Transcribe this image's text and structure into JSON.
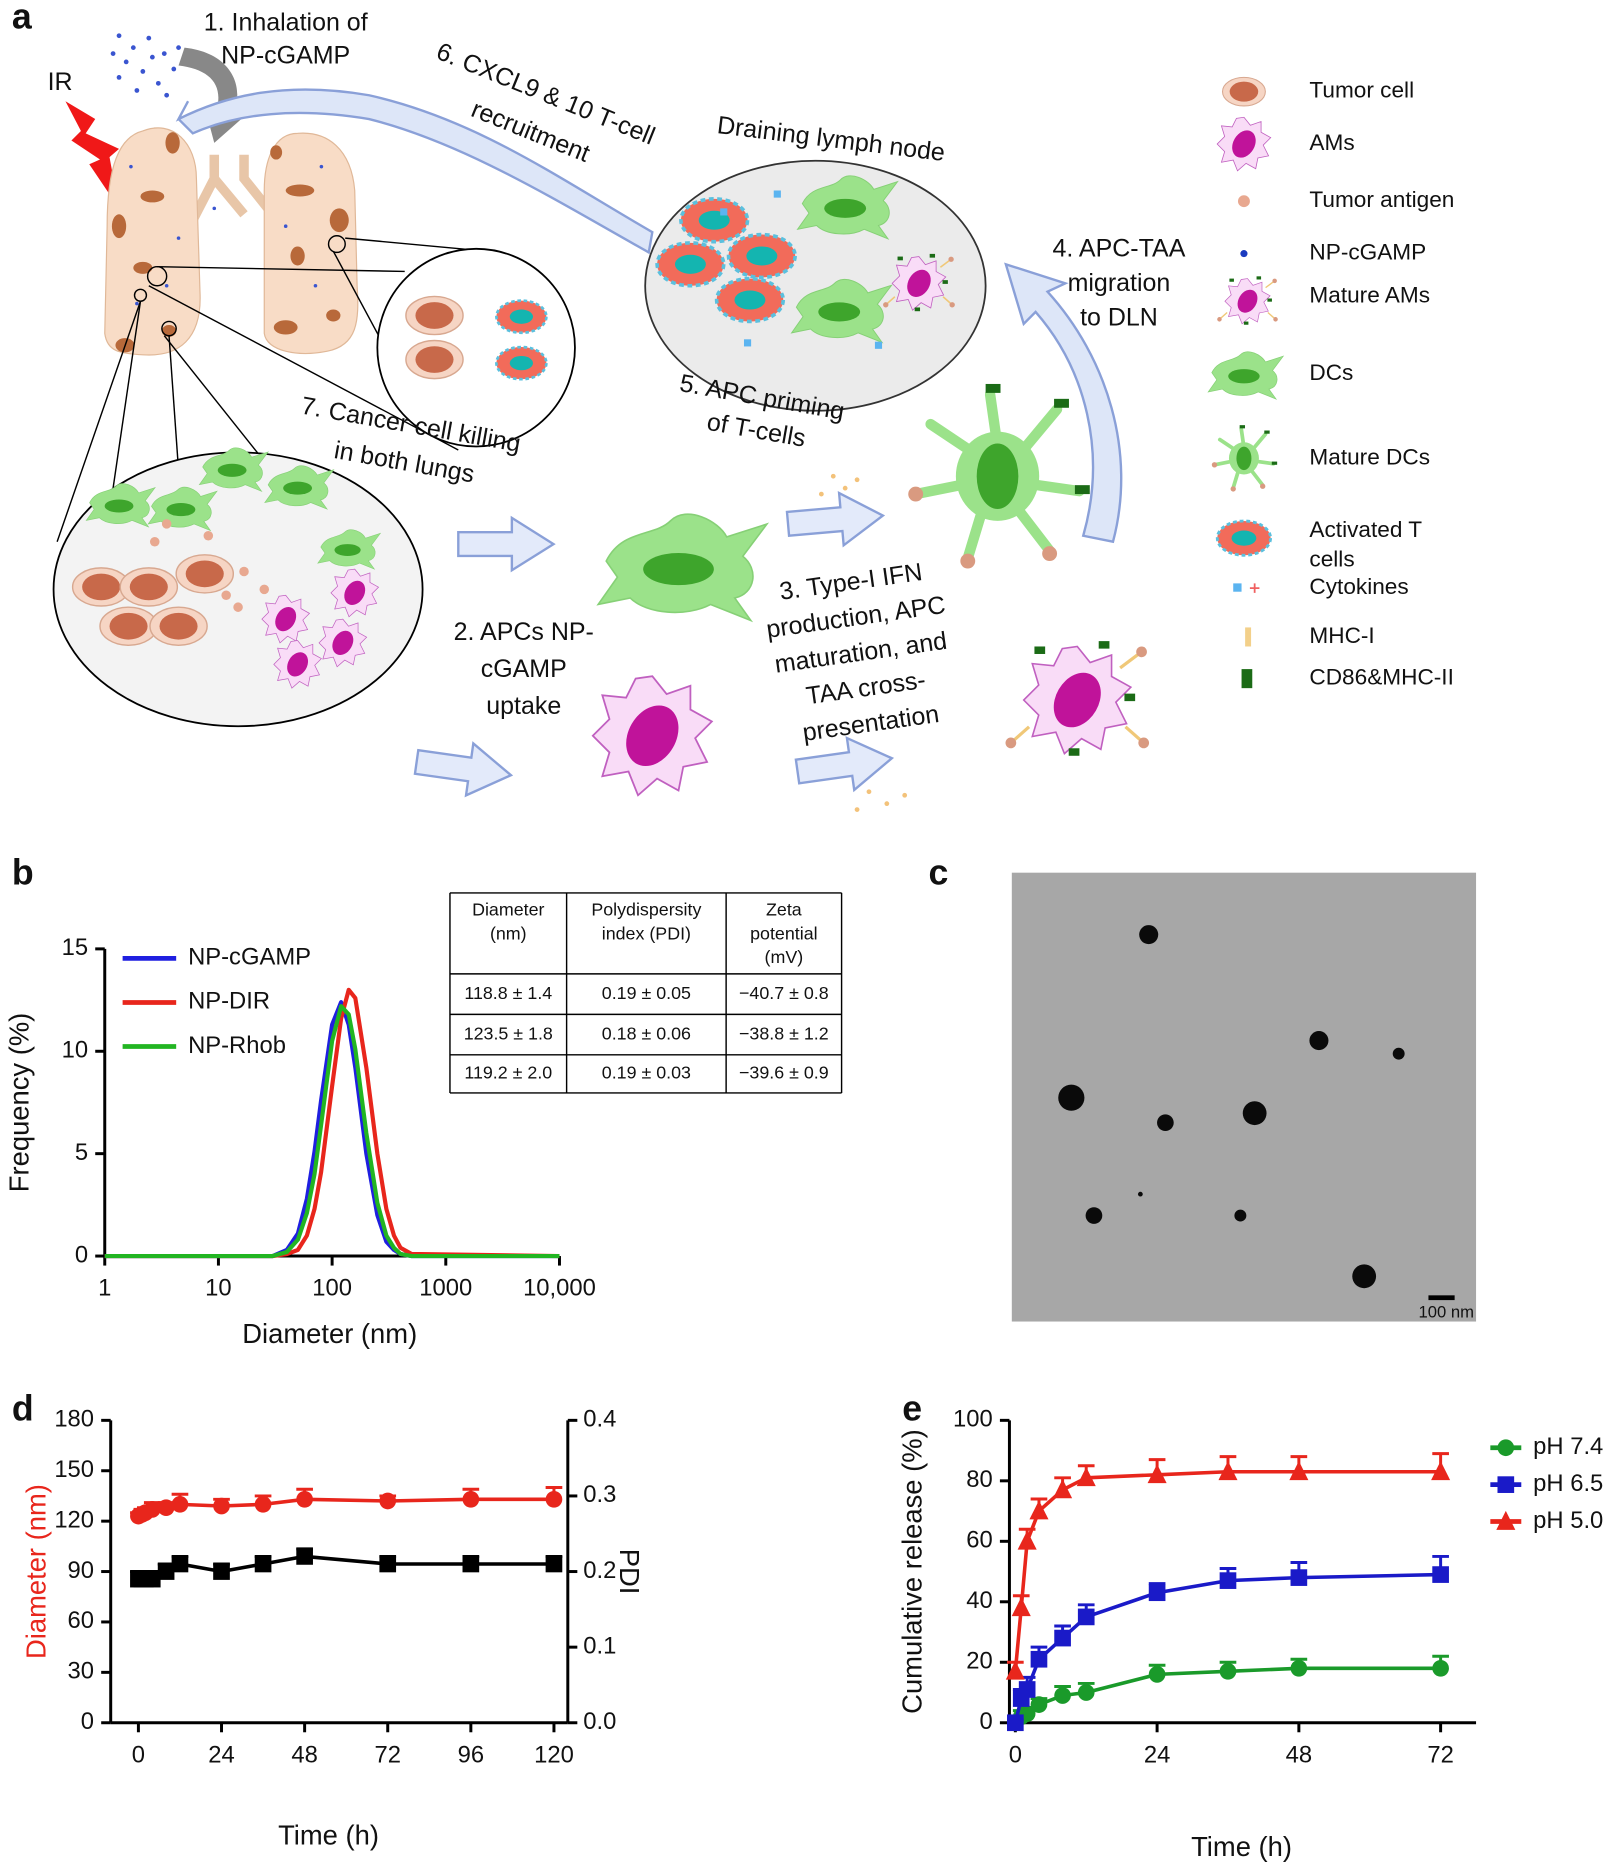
{
  "panel_labels": [
    "a",
    "b",
    "c",
    "d",
    "e"
  ],
  "panel_a": {
    "ir": "IR",
    "lymph_node": "Draining lymph node",
    "steps": [
      {
        "lines": [
          "1. Inhalation of",
          "NP-cGAMP"
        ]
      },
      {
        "lines": [
          "6. CXCL9 & 10 T-cell",
          "recruitment"
        ]
      },
      {
        "lines": [
          "5. APC priming",
          "of T-cells"
        ]
      },
      {
        "lines": [
          "4. APC-TAA",
          "migration",
          "to DLN"
        ]
      },
      {
        "lines": [
          "7. Cancer cell killing",
          "in both lungs"
        ]
      },
      {
        "lines": [
          "2. APCs NP-",
          "cGAMP",
          "uptake"
        ]
      },
      {
        "lines": [
          "3. Type-I IFN",
          "production, APC",
          "maturation, and",
          "TAA cross-",
          "presentation"
        ]
      }
    ],
    "legend": [
      [
        "Tumor cell"
      ],
      [
        "AMs"
      ],
      [
        "Tumor antigen"
      ],
      [
        "NP-cGAMP"
      ],
      [
        "Mature AMs"
      ],
      [
        "DCs"
      ],
      [
        "Mature DCs"
      ],
      [
        "Activated T",
        "cells"
      ],
      [
        "Cytokines"
      ],
      [
        "MHC-I"
      ],
      [
        "CD86&MHC-II"
      ]
    ]
  },
  "table": {
    "header": [
      [
        "Diameter",
        "(nm)"
      ],
      [
        "Polydispersity",
        "index (PDI)"
      ],
      [
        "Zeta",
        "potential",
        "(mV)"
      ]
    ],
    "rows": [
      [
        "118.8 ± 1.4",
        "0.19 ± 0.05",
        "−40.7 ± 0.8"
      ],
      [
        "123.5 ± 1.8",
        "0.18 ± 0.06",
        "−38.8 ± 1.2"
      ],
      [
        "119.2 ± 2.0",
        "0.19 ± 0.03",
        "−39.6 ± 0.9"
      ]
    ]
  },
  "panel_c": {
    "scale_bar": "100 nm"
  },
  "chart_data": [
    {
      "type": "line",
      "xlog": true,
      "xlim": [
        1,
        10000
      ],
      "xticks": [
        1,
        10,
        100,
        1000,
        {
          "value": 10000,
          "label": "10,000"
        }
      ],
      "ylim": [
        0,
        15
      ],
      "yticks": [
        0,
        5,
        10,
        15
      ],
      "xlabel": "Diameter (nm)",
      "ylabel": "Frequency (%)",
      "legend": "upper left",
      "x": [
        1,
        30,
        40,
        50,
        60,
        70,
        80,
        100,
        120,
        140,
        160,
        200,
        250,
        300,
        350,
        400,
        500,
        10000
      ],
      "series": [
        {
          "name": "NP-cGAMP",
          "color": "#1f1fe0",
          "values": [
            0,
            0,
            0.3,
            1.1,
            2.8,
            5.1,
            7.6,
            11.3,
            12.4,
            11.3,
            9.2,
            5.0,
            2.0,
            0.7,
            0.3,
            0.1,
            0,
            0
          ]
        },
        {
          "name": "NP-DIR",
          "color": "#e8261c",
          "values": [
            0,
            0,
            0.1,
            0.3,
            1.0,
            2.3,
            4.1,
            8.3,
            11.6,
            13.0,
            12.6,
            9.2,
            5.0,
            2.3,
            1.0,
            0.4,
            0.1,
            0
          ]
        },
        {
          "name": "NP-Rhob",
          "color": "#22b522",
          "values": [
            0,
            0,
            0.2,
            0.8,
            2.1,
            4.0,
            6.4,
            10.5,
            12.2,
            11.8,
            10.1,
            6.0,
            2.6,
            1.0,
            0.4,
            0.1,
            0,
            0
          ]
        }
      ]
    },
    {
      "type": "line",
      "xlim": [
        -8,
        124
      ],
      "xticks": [
        0,
        24,
        48,
        72,
        96,
        120
      ],
      "ylim": [
        0,
        180
      ],
      "yticks": [
        0,
        30,
        60,
        90,
        120,
        150,
        180
      ],
      "y2lim": [
        0,
        0.4
      ],
      "y2ticks": [
        {
          "value": 0,
          "label": "0.0"
        },
        0.1,
        0.2,
        0.3,
        0.4
      ],
      "xlabel": "Time (h)",
      "ylabel": "Diameter (nm)",
      "ylabel_color": "#e8261c",
      "y2label": "PDI",
      "x": [
        0,
        1,
        2,
        4,
        8,
        12,
        24,
        36,
        48,
        72,
        96,
        120
      ],
      "series": [
        {
          "color": "#e8261c",
          "marker": "circle",
          "values": [
            123,
            124,
            125,
            127,
            128,
            130,
            129,
            130,
            133,
            132,
            133,
            133
          ],
          "errors": [
            2,
            3,
            3,
            4,
            3,
            6,
            4,
            5,
            6,
            3,
            6,
            7
          ]
        },
        {
          "color": "#000000",
          "marker": "square",
          "axis": "y2",
          "values": [
            0.19,
            0.19,
            0.19,
            0.19,
            0.2,
            0.21,
            0.2,
            0.21,
            0.22,
            0.21,
            0.21,
            0.21
          ],
          "errors": [
            0.01,
            0.01,
            0.01,
            0.01,
            0.01,
            0.01,
            0.01,
            0.01,
            0.01,
            0.01,
            0.01,
            0.01
          ]
        }
      ]
    },
    {
      "type": "line",
      "xlim": [
        -1,
        78
      ],
      "xticks": [
        0,
        24,
        48,
        72
      ],
      "ylim": [
        0,
        100
      ],
      "yticks": [
        0,
        20,
        40,
        60,
        80,
        100
      ],
      "xlabel": "Time (h)",
      "ylabel": "Cumulative release (%)",
      "legend": "right",
      "x": [
        0,
        1,
        2,
        4,
        8,
        12,
        24,
        36,
        48,
        72
      ],
      "series": [
        {
          "name": "pH 7.4",
          "color": "#1a9a2a",
          "marker": "circle",
          "values": [
            0,
            2,
            3,
            6,
            9,
            10,
            16,
            17,
            18,
            18
          ],
          "errors": [
            1,
            2,
            2,
            2,
            3,
            3,
            3,
            3,
            3,
            4
          ]
        },
        {
          "name": "pH 6.5",
          "color": "#1a1ac8",
          "marker": "square",
          "values": [
            0,
            8,
            11,
            21,
            28,
            35,
            43,
            47,
            48,
            49
          ],
          "errors": [
            1,
            3,
            4,
            4,
            4,
            4,
            3,
            4,
            5,
            6
          ]
        },
        {
          "name": "pH 5.0",
          "color": "#e8261c",
          "marker": "triangle",
          "values": [
            17,
            38,
            60,
            70,
            77,
            81,
            82,
            83,
            83,
            83
          ],
          "errors": [
            3,
            4,
            4,
            4,
            4,
            4,
            5,
            5,
            5,
            6
          ]
        }
      ]
    }
  ]
}
